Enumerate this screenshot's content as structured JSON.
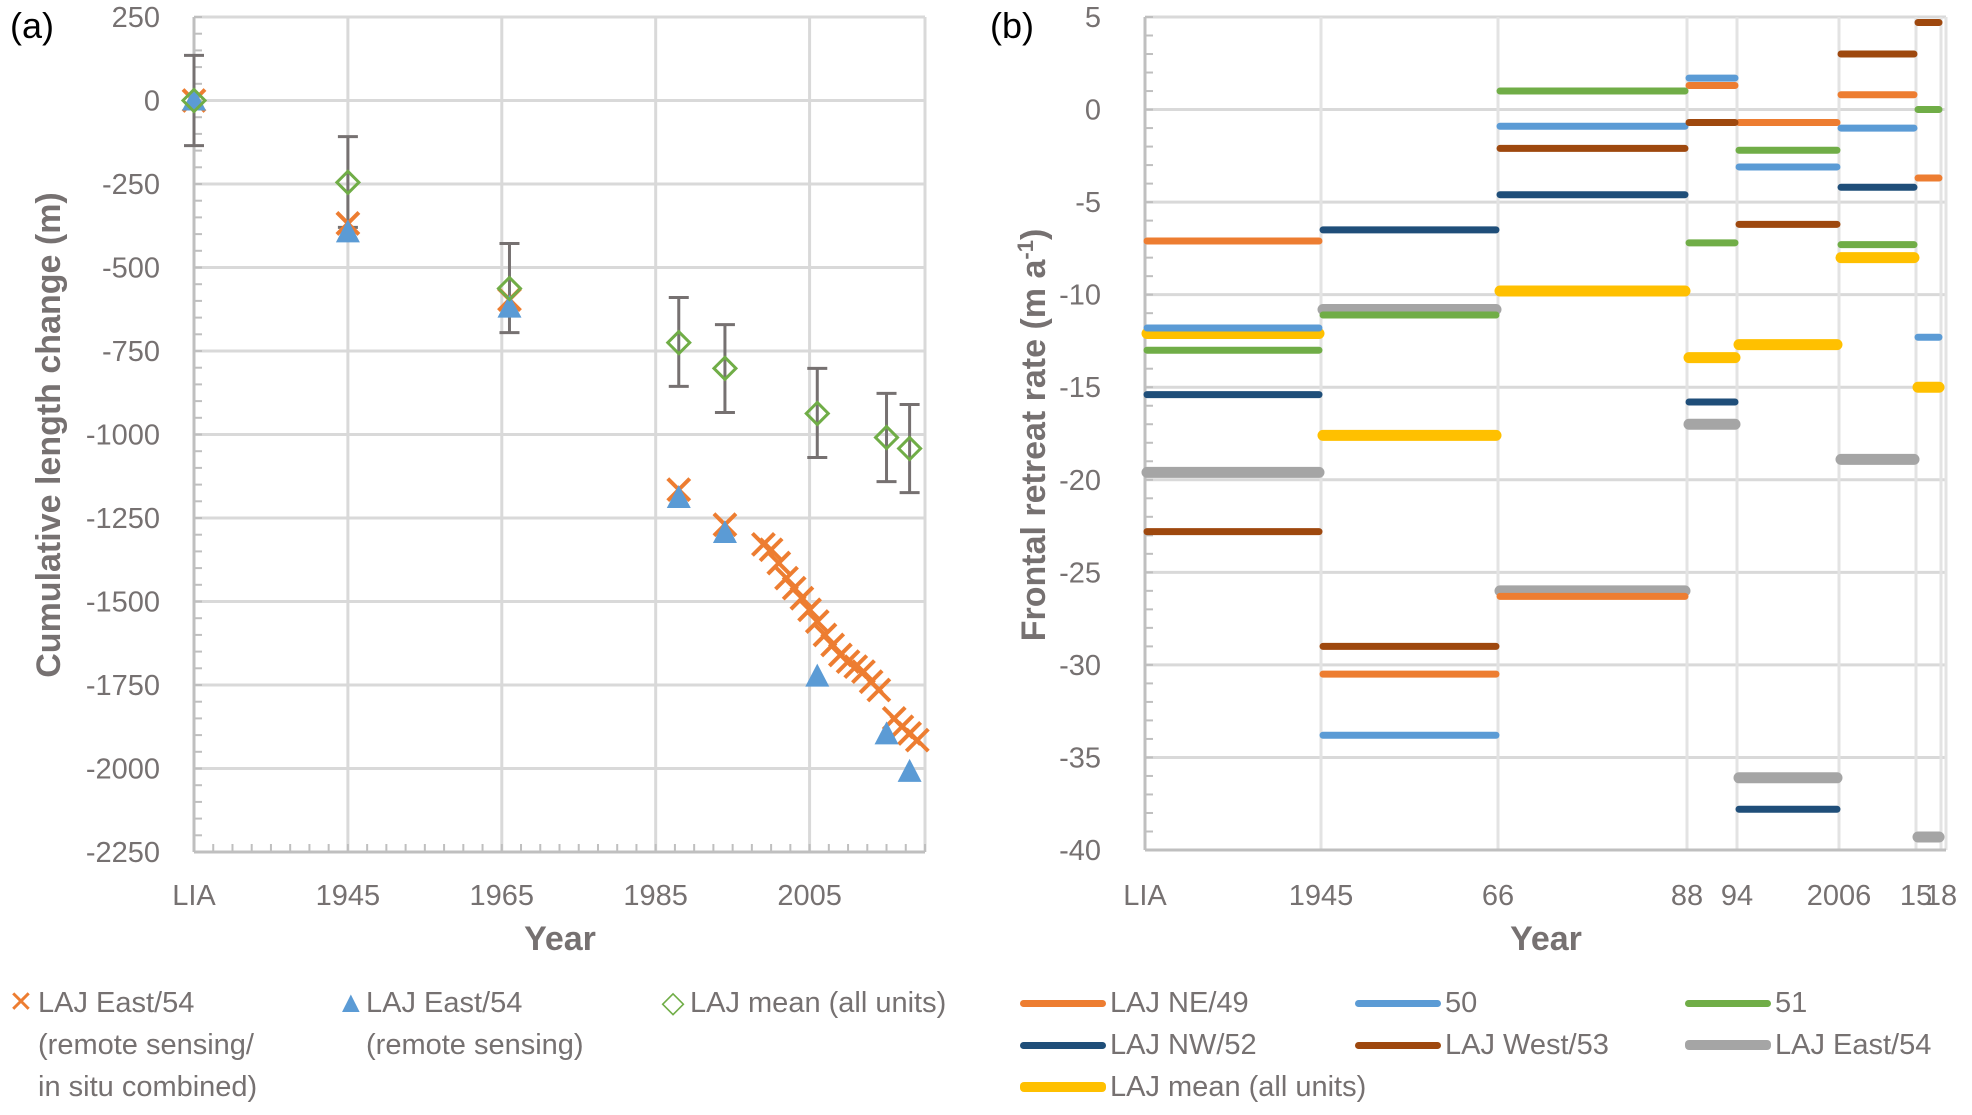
{
  "chart_data": [
    {
      "panel": "(a)",
      "type": "scatter",
      "xlabel": "Year",
      "ylabel": "Cumulative length change (m)",
      "ylim": [
        -2250,
        250
      ],
      "yticks": [
        250,
        0,
        -250,
        -500,
        -750,
        -1000,
        -1250,
        -1500,
        -1750,
        -2000,
        -2250
      ],
      "xlim": [
        1925,
        2020
      ],
      "xticks": [
        {
          "value": 1925,
          "label": "LIA"
        },
        {
          "value": 1945,
          "label": "1945"
        },
        {
          "value": 1965,
          "label": "1965"
        },
        {
          "value": 1985,
          "label": "1985"
        },
        {
          "value": 2005,
          "label": "2005"
        }
      ],
      "grid": true,
      "series": [
        {
          "name": "LAJ East/54 (remote sensing/ in situ combined)",
          "legend_lines": [
            "LAJ East/54",
            "(remote sensing/",
            "in situ combined)"
          ],
          "marker": "x",
          "color": "#ED7D31",
          "points": [
            [
              1925,
              0
            ],
            [
              1945,
              -368
            ],
            [
              1966,
              -596
            ],
            [
              1988,
              -1165
            ],
            [
              1994,
              -1270
            ],
            [
              1999,
              -1329
            ],
            [
              2000,
              -1345
            ],
            [
              2001,
              -1385
            ],
            [
              2002,
              -1430
            ],
            [
              2003,
              -1460
            ],
            [
              2004,
              -1490
            ],
            [
              2005,
              -1525
            ],
            [
              2006,
              -1560
            ],
            [
              2007,
              -1600
            ],
            [
              2008,
              -1630
            ],
            [
              2009,
              -1660
            ],
            [
              2010,
              -1680
            ],
            [
              2011,
              -1695
            ],
            [
              2012,
              -1710
            ],
            [
              2013,
              -1740
            ],
            [
              2014,
              -1765
            ],
            [
              2016,
              -1850
            ],
            [
              2017,
              -1875
            ],
            [
              2018,
              -1895
            ],
            [
              2019,
              -1915
            ]
          ]
        },
        {
          "name": "LAJ East/54 (remote sensing)",
          "legend_lines": [
            "LAJ East/54",
            "(remote sensing)"
          ],
          "marker": "triangle",
          "color": "#5B9BD5",
          "points": [
            [
              1925,
              0
            ],
            [
              1945,
              -395
            ],
            [
              1966,
              -620
            ],
            [
              1988,
              -1190
            ],
            [
              1994,
              -1295
            ],
            [
              2006,
              -1725
            ],
            [
              2015,
              -1898
            ],
            [
              2018,
              -2010
            ]
          ]
        },
        {
          "name": "LAJ mean (all units)",
          "legend_lines": [
            "LAJ mean (all units)"
          ],
          "marker": "diamond-open",
          "color": "#70AD47",
          "error_bar_color": "#767171",
          "points": [
            {
              "x": 1925,
              "y": 0,
              "err_low": -135,
              "err_high": 135
            },
            {
              "x": 1945,
              "y": -245,
              "err_low": -380,
              "err_high": -108
            },
            {
              "x": 1966,
              "y": -563,
              "err_low": -695,
              "err_high": -428
            },
            {
              "x": 1988,
              "y": -725,
              "err_low": -856,
              "err_high": -590
            },
            {
              "x": 1994,
              "y": -802,
              "err_low": -934,
              "err_high": -671
            },
            {
              "x": 2006,
              "y": -937,
              "err_low": -1069,
              "err_high": -802
            },
            {
              "x": 2015,
              "y": -1009,
              "err_low": -1141,
              "err_high": -877
            },
            {
              "x": 2018,
              "y": -1042,
              "err_low": -1174,
              "err_high": -910
            }
          ]
        }
      ]
    },
    {
      "panel": "(b)",
      "type": "line",
      "subtype": "step-segments",
      "xlabel": "Year",
      "ylabel": "Frontal retreat rate (m a",
      "ylabel_sup": "-1",
      "ylabel_close": ")",
      "ylim": [
        -40,
        5
      ],
      "yticks": [
        5,
        0,
        -5,
        -10,
        -15,
        -20,
        -25,
        -30,
        -35,
        -40
      ],
      "xlim": [
        1925,
        2018.2
      ],
      "xticks": [
        {
          "value": 1925,
          "label": "LIA"
        },
        {
          "value": 1945,
          "label": "1945"
        },
        {
          "value": 1966,
          "label": "66"
        },
        {
          "value": 1988,
          "label": "88"
        },
        {
          "value": 1994,
          "label": "94"
        },
        {
          "value": 2006,
          "label": "2006"
        },
        {
          "value": 2015,
          "label": "15"
        },
        {
          "value": 2018,
          "label": "18"
        }
      ],
      "periods": [
        [
          1925,
          1945
        ],
        [
          1945,
          1966
        ],
        [
          1966,
          1988
        ],
        [
          1988,
          1994
        ],
        [
          1994,
          2006
        ],
        [
          2006,
          2015
        ],
        [
          2015,
          2018
        ]
      ],
      "grid": true,
      "series": [
        {
          "name": "LAJ NE/49",
          "color": "#ED7D31",
          "weight": "thin",
          "values": [
            -7.1,
            -30.5,
            -26.3,
            1.3,
            -0.7,
            0.8,
            -3.7
          ]
        },
        {
          "name": "50",
          "color": "#5B9BD5",
          "weight": "thin",
          "values": [
            -11.8,
            -33.8,
            -0.9,
            1.7,
            -3.1,
            -1.0,
            -12.3
          ]
        },
        {
          "name": "51",
          "color": "#70AD47",
          "weight": "thin",
          "values": [
            -13.0,
            -11.1,
            1.0,
            -7.2,
            -2.2,
            -7.3,
            0.0
          ]
        },
        {
          "name": "LAJ NW/52",
          "color": "#1F4E79",
          "weight": "thin",
          "values": [
            -15.4,
            -6.5,
            -4.6,
            -15.8,
            -37.8,
            -4.2,
            null
          ]
        },
        {
          "name": "LAJ West/53",
          "color": "#9E480E",
          "weight": "thin",
          "values": [
            -22.8,
            -29.0,
            -2.1,
            -0.7,
            -6.2,
            3.0,
            4.7
          ]
        },
        {
          "name": "LAJ East/54",
          "color": "#A5A5A5",
          "weight": "thick",
          "values": [
            -19.6,
            -10.8,
            -26.0,
            -17.0,
            -36.1,
            -18.9,
            -39.3
          ]
        },
        {
          "name": "LAJ mean (all units)",
          "color": "#FFC000",
          "weight": "thick",
          "values": [
            -12.1,
            -17.6,
            -9.8,
            -13.4,
            -12.7,
            -8.0,
            -15.0
          ]
        }
      ]
    }
  ]
}
